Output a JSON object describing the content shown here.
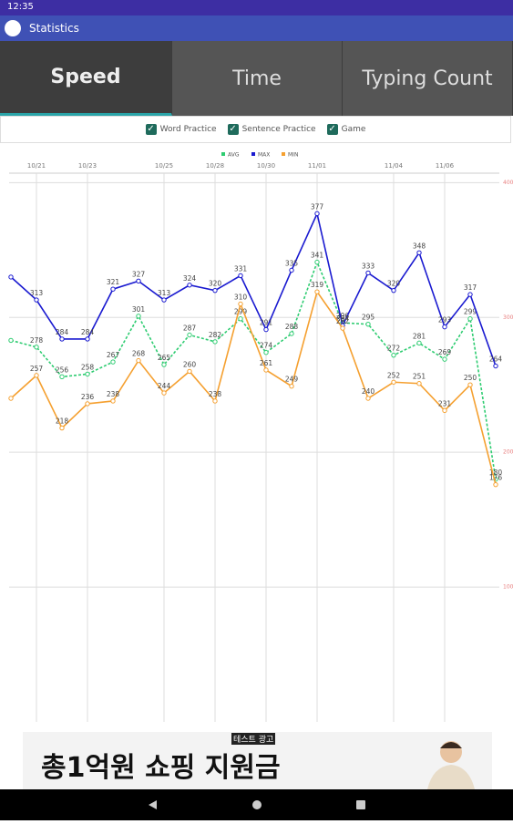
{
  "status_bar": {
    "time": "12:35"
  },
  "toolbar": {
    "title": "Statistics"
  },
  "tabs": [
    "Speed",
    "Time",
    "Typing Count"
  ],
  "filters": [
    "Word Practice",
    "Sentence Practice",
    "Game"
  ],
  "chart_data": {
    "type": "line",
    "categories": [
      null,
      "10/21",
      null,
      "10/23",
      null,
      null,
      "10/25",
      null,
      "10/28",
      null,
      "10/30",
      null,
      "11/01",
      null,
      null,
      "11/04",
      null,
      "11/06",
      null,
      null
    ],
    "series": [
      {
        "name": "AVG",
        "color": "#2ecc71",
        "dashed": true,
        "values": [
          283,
          278,
          256,
          258,
          267,
          301,
          265,
          287,
          282,
          299,
          274,
          288,
          341,
          296,
          295,
          272,
          281,
          269,
          299,
          180
        ]
      },
      {
        "name": "MAX",
        "color": "#1a1ad0",
        "dashed": false,
        "values": [
          330,
          313,
          284,
          284,
          321,
          327,
          313,
          324,
          320,
          331,
          291,
          335,
          377,
          294,
          333,
          320,
          348,
          293,
          317,
          264
        ]
      },
      {
        "name": "MIN",
        "color": "#f5a030",
        "dashed": false,
        "values": [
          240,
          257,
          218,
          236,
          238,
          268,
          244,
          260,
          238,
          310,
          261,
          249,
          319,
          292,
          240,
          252,
          251,
          231,
          250,
          176
        ]
      }
    ],
    "ylim": [
      0,
      407
    ],
    "yticks": [
      100,
      200,
      300,
      400
    ],
    "grid": true,
    "legend": "top"
  },
  "ad": {
    "badge": "테스트 광고",
    "text": "총1억원 쇼핑 지원금"
  }
}
